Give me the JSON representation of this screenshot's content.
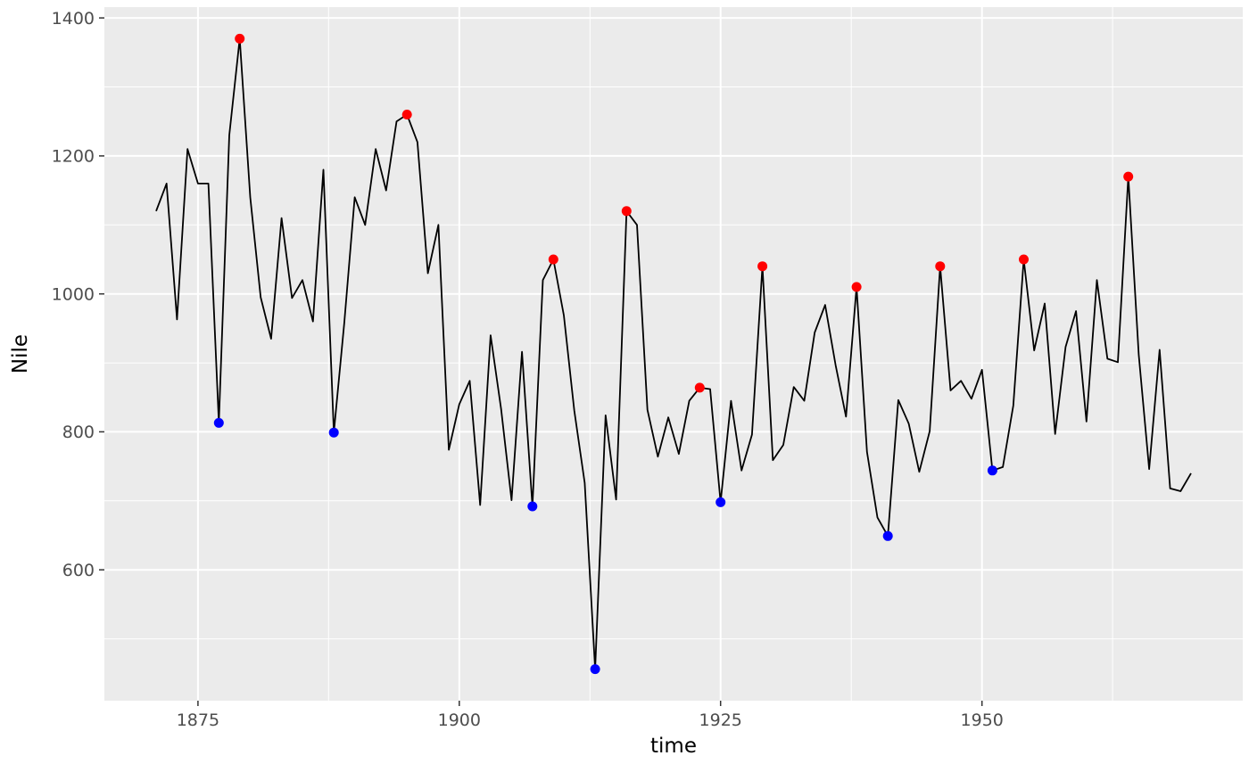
{
  "chart_data": {
    "type": "line",
    "title": "",
    "xlabel": "time",
    "ylabel": "Nile",
    "x_start": 1871,
    "x_step": 1,
    "x_end": 1970,
    "values": [
      1120,
      1160,
      963,
      1210,
      1160,
      1160,
      813,
      1230,
      1370,
      1140,
      995,
      935,
      1110,
      994,
      1020,
      960,
      1180,
      799,
      958,
      1140,
      1100,
      1210,
      1150,
      1250,
      1260,
      1220,
      1030,
      1100,
      774,
      840,
      874,
      694,
      940,
      833,
      701,
      916,
      692,
      1020,
      1050,
      969,
      831,
      726,
      456,
      824,
      702,
      1120,
      1100,
      832,
      764,
      821,
      768,
      845,
      864,
      862,
      698,
      845,
      744,
      796,
      1040,
      759,
      781,
      865,
      845,
      944,
      984,
      897,
      822,
      1010,
      771,
      676,
      649,
      846,
      812,
      742,
      801,
      1040,
      860,
      874,
      848,
      890,
      744,
      749,
      838,
      1050,
      918,
      986,
      797,
      923,
      975,
      815,
      1020,
      906,
      901,
      1170,
      912,
      746,
      919,
      718,
      714,
      740
    ],
    "peaks": {
      "name": "local-maxima",
      "color": "#FF0000",
      "points": [
        {
          "x": 1879,
          "y": 1370
        },
        {
          "x": 1895,
          "y": 1260
        },
        {
          "x": 1909,
          "y": 1050
        },
        {
          "x": 1916,
          "y": 1120
        },
        {
          "x": 1923,
          "y": 864
        },
        {
          "x": 1929,
          "y": 1040
        },
        {
          "x": 1938,
          "y": 1010
        },
        {
          "x": 1946,
          "y": 1040
        },
        {
          "x": 1954,
          "y": 1050
        },
        {
          "x": 1964,
          "y": 1170
        }
      ]
    },
    "valleys": {
      "name": "local-minima",
      "color": "#0000FF",
      "points": [
        {
          "x": 1877,
          "y": 813
        },
        {
          "x": 1888,
          "y": 799
        },
        {
          "x": 1907,
          "y": 692
        },
        {
          "x": 1913,
          "y": 456
        },
        {
          "x": 1925,
          "y": 698
        },
        {
          "x": 1941,
          "y": 649
        },
        {
          "x": 1951,
          "y": 744
        }
      ]
    },
    "x_ticks": [
      {
        "value": 1875,
        "label": "1875"
      },
      {
        "value": 1900,
        "label": "1900"
      },
      {
        "value": 1925,
        "label": "1925"
      },
      {
        "value": 1950,
        "label": "1950"
      }
    ],
    "y_ticks": [
      {
        "value": 600,
        "label": "600"
      },
      {
        "value": 800,
        "label": "800"
      },
      {
        "value": 1000,
        "label": "1000"
      },
      {
        "value": 1200,
        "label": "1200"
      },
      {
        "value": 1400,
        "label": "1400"
      }
    ],
    "x_minor": [
      1887.5,
      1912.5,
      1937.5,
      1962.5
    ],
    "y_minor": [
      500,
      700,
      900,
      1100,
      1300
    ],
    "xlim": [
      1866.05,
      1974.95
    ],
    "ylim": [
      410.3,
      1415.7
    ],
    "grid": true,
    "legend": "none",
    "colors": {
      "panel_bg": "#EBEBEB",
      "grid": "#FFFFFF",
      "line": "#000000",
      "axis_text": "#4D4D4D",
      "tick_mark": "#333333",
      "axis_title": "#000000",
      "background": "#FFFFFF"
    }
  }
}
